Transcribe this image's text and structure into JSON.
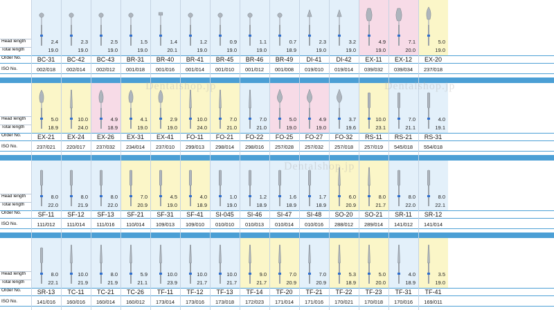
{
  "row_labels": {
    "head": "Head length",
    "total": "Total length",
    "order": "Order No.",
    "iso": "ISO No."
  },
  "watermark": "Dentalshop.jp",
  "colors": {
    "light_blue": "#e3f0fa",
    "yellow": "#fbf6c8",
    "pink": "#f7dbe7",
    "band": "#4b9fd5",
    "head": "#3f7fe0"
  },
  "rows": [
    [
      {
        "order": "BC-31",
        "iso": "002/018",
        "head": "2.4",
        "total": "19.0",
        "bg": "light_blue",
        "shape": "ball"
      },
      {
        "order": "BC-42",
        "iso": "002/014",
        "head": "2.3",
        "total": "19.0",
        "bg": "light_blue",
        "shape": "ball"
      },
      {
        "order": "BC-43",
        "iso": "002/012",
        "head": "2.5",
        "total": "19.0",
        "bg": "light_blue",
        "shape": "ball"
      },
      {
        "order": "BR-31",
        "iso": "001/018",
        "head": "1.5",
        "total": "19.0",
        "bg": "light_blue",
        "shape": "ball"
      },
      {
        "order": "BR-40",
        "iso": "001/016",
        "head": "1.4",
        "total": "20.1",
        "bg": "light_blue",
        "shape": "wheel"
      },
      {
        "order": "BR-41",
        "iso": "001/014",
        "head": "1.2",
        "total": "19.0",
        "bg": "light_blue",
        "shape": "ball"
      },
      {
        "order": "BR-45",
        "iso": "001/010",
        "head": "0.9",
        "total": "19.0",
        "bg": "light_blue",
        "shape": "ball"
      },
      {
        "order": "BR-46",
        "iso": "001/012",
        "head": "1.1",
        "total": "19.0",
        "bg": "light_blue",
        "shape": "ball"
      },
      {
        "order": "BR-49",
        "iso": "001/008",
        "head": "0.7",
        "total": "18.9",
        "bg": "light_blue",
        "shape": "ball"
      },
      {
        "order": "DI-41",
        "iso": "019/010",
        "head": "2.3",
        "total": "19.0",
        "bg": "light_blue",
        "shape": "cone"
      },
      {
        "order": "DI-42",
        "iso": "019/014",
        "head": "3.2",
        "total": "19.0",
        "bg": "light_blue",
        "shape": "cone"
      },
      {
        "order": "EX-11",
        "iso": "039/032",
        "head": "4.9",
        "total": "19.0",
        "bg": "pink",
        "shape": "barrel"
      },
      {
        "order": "EX-12",
        "iso": "039/034",
        "head": "7.1",
        "total": "20.0",
        "bg": "pink",
        "shape": "barrel"
      },
      {
        "order": "EX-20",
        "iso": "237/018",
        "head": "5.0",
        "total": "19.0",
        "bg": "yellow",
        "shape": "pear"
      }
    ],
    [
      {
        "order": "EX-21",
        "iso": "237/021",
        "head": "5.0",
        "total": "18.9",
        "bg": "yellow",
        "shape": "pear"
      },
      {
        "order": "EX-24",
        "iso": "220/017",
        "head": "10.0",
        "total": "24.0",
        "bg": "yellow",
        "shape": "taper"
      },
      {
        "order": "EX-26",
        "iso": "237/032",
        "head": "4.9",
        "total": "18.9",
        "bg": "pink",
        "shape": "pear"
      },
      {
        "order": "EX-31",
        "iso": "234/014",
        "head": "4.1",
        "total": "19.0",
        "bg": "yellow",
        "shape": "pear"
      },
      {
        "order": "EX-41",
        "iso": "237/010",
        "head": "2.9",
        "total": "19.0",
        "bg": "yellow",
        "shape": "pear"
      },
      {
        "order": "FO-11",
        "iso": "299/013",
        "head": "10.0",
        "total": "24.0",
        "bg": "yellow",
        "shape": "taper"
      },
      {
        "order": "FO-21",
        "iso": "298/014",
        "head": "7.0",
        "total": "21.0",
        "bg": "yellow",
        "shape": "taper"
      },
      {
        "order": "FO-22",
        "iso": "298/016",
        "head": "7.0",
        "total": "21.0",
        "bg": "light_blue",
        "shape": "taper"
      },
      {
        "order": "FO-25",
        "iso": "257/028",
        "head": "5.0",
        "total": "19.0",
        "bg": "pink",
        "shape": "flame"
      },
      {
        "order": "FO-27",
        "iso": "257/032",
        "head": "4.9",
        "total": "19.0",
        "bg": "pink",
        "shape": "flame"
      },
      {
        "order": "FO-32",
        "iso": "257/018",
        "head": "3.7",
        "total": "19.6",
        "bg": "light_blue",
        "shape": "flame"
      },
      {
        "order": "RS-11",
        "iso": "257/019",
        "head": "10.0",
        "total": "23.1",
        "bg": "yellow",
        "shape": "cyl"
      },
      {
        "order": "RS-21",
        "iso": "545/018",
        "head": "7.0",
        "total": "21.1",
        "bg": "light_blue",
        "shape": "cyl"
      },
      {
        "order": "RS-31",
        "iso": "554/018",
        "head": "4.0",
        "total": "19.1",
        "bg": "light_blue",
        "shape": "cyl"
      }
    ],
    [
      {
        "order": "SF-11",
        "iso": "111/012",
        "head": "8.0",
        "total": "22.0",
        "bg": "light_blue",
        "shape": "cyl"
      },
      {
        "order": "SF-12",
        "iso": "111/014",
        "head": "8.0",
        "total": "21.9",
        "bg": "light_blue",
        "shape": "cyl"
      },
      {
        "order": "SF-13",
        "iso": "111/016",
        "head": "8.0",
        "total": "22.0",
        "bg": "light_blue",
        "shape": "cyl"
      },
      {
        "order": "SF-21",
        "iso": "110/014",
        "head": "7.0",
        "total": "20.9",
        "bg": "yellow",
        "shape": "cyl"
      },
      {
        "order": "SF-31",
        "iso": "109/013",
        "head": "4.5",
        "total": "19.0",
        "bg": "yellow",
        "shape": "cyl"
      },
      {
        "order": "SF-41",
        "iso": "109/010",
        "head": "4.0",
        "total": "18.9",
        "bg": "yellow",
        "shape": "cyl"
      },
      {
        "order": "SI-045",
        "iso": "010/010",
        "head": "1.0",
        "total": "19.0",
        "bg": "light_blue",
        "shape": "cyl"
      },
      {
        "order": "SI-46",
        "iso": "010/013",
        "head": "1.2",
        "total": "18.9",
        "bg": "light_blue",
        "shape": "cyl"
      },
      {
        "order": "SI-47",
        "iso": "010/014",
        "head": "1.6",
        "total": "18.9",
        "bg": "light_blue",
        "shape": "cyl"
      },
      {
        "order": "SI-48",
        "iso": "010/016",
        "head": "1.7",
        "total": "18.9",
        "bg": "light_blue",
        "shape": "cyl"
      },
      {
        "order": "SO-20",
        "iso": "288/012",
        "head": "6.0",
        "total": "20.9",
        "bg": "yellow",
        "shape": "taper"
      },
      {
        "order": "SO-21",
        "iso": "289/014",
        "head": "8.0",
        "total": "21.7",
        "bg": "yellow",
        "shape": "taper"
      },
      {
        "order": "SR-11",
        "iso": "141/012",
        "head": "8.0",
        "total": "22.0",
        "bg": "light_blue",
        "shape": "cyl"
      },
      {
        "order": "SR-12",
        "iso": "141/014",
        "head": "8.0",
        "total": "22.1",
        "bg": "light_blue",
        "shape": "cyl"
      }
    ],
    [
      {
        "order": "SR-13",
        "iso": "141/016",
        "head": "8.0",
        "total": "22.1",
        "bg": "light_blue",
        "shape": "cyl"
      },
      {
        "order": "TC-11",
        "iso": "160/016",
        "head": "10.0",
        "total": "21.9",
        "bg": "light_blue",
        "shape": "taper"
      },
      {
        "order": "TC-21",
        "iso": "160/014",
        "head": "8.0",
        "total": "21.9",
        "bg": "light_blue",
        "shape": "taper"
      },
      {
        "order": "TC-26",
        "iso": "160/012",
        "head": "5.9",
        "total": "21.1",
        "bg": "light_blue",
        "shape": "taper"
      },
      {
        "order": "TF-11",
        "iso": "173/014",
        "head": "10.0",
        "total": "23.9",
        "bg": "light_blue",
        "shape": "taper"
      },
      {
        "order": "TF-12",
        "iso": "173/016",
        "head": "10.0",
        "total": "21.7",
        "bg": "light_blue",
        "shape": "taper"
      },
      {
        "order": "TF-13",
        "iso": "173/018",
        "head": "10.0",
        "total": "21.7",
        "bg": "light_blue",
        "shape": "taper"
      },
      {
        "order": "TF-14",
        "iso": "172/023",
        "head": "9.0",
        "total": "21.7",
        "bg": "yellow",
        "shape": "taper"
      },
      {
        "order": "TF-20",
        "iso": "171/014",
        "head": "7.0",
        "total": "20.9",
        "bg": "yellow",
        "shape": "taper"
      },
      {
        "order": "TF-21",
        "iso": "171/016",
        "head": "7.0",
        "total": "20.9",
        "bg": "light_blue",
        "shape": "taper"
      },
      {
        "order": "TF-22",
        "iso": "170/021",
        "head": "5.3",
        "total": "18.9",
        "bg": "yellow",
        "shape": "taper"
      },
      {
        "order": "TF-23",
        "iso": "170/018",
        "head": "5.0",
        "total": "20.0",
        "bg": "yellow",
        "shape": "taper"
      },
      {
        "order": "TF-31",
        "iso": "170/016",
        "head": "4.0",
        "total": "18.9",
        "bg": "light_blue",
        "shape": "taper"
      },
      {
        "order": "TF-41",
        "iso": "169/011",
        "head": "3.5",
        "total": "19.0",
        "bg": "yellow",
        "shape": "taper"
      }
    ]
  ]
}
